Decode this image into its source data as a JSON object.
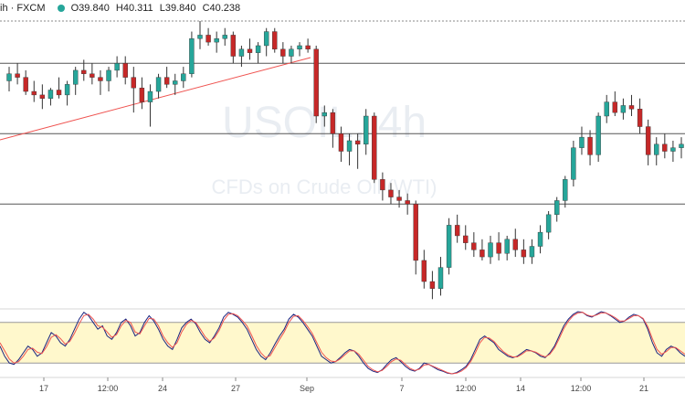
{
  "header": {
    "symbol_suffix": "ih · FXCM",
    "open": "O39.840",
    "high": "H40.311",
    "low": "L39.840",
    "close": "C40.238"
  },
  "watermark": {
    "symbol": "USOIL, 4h",
    "description": "CFDs on Crude Oil (WTI)"
  },
  "colors": {
    "up": "#26a69a",
    "down": "#c62828",
    "trendline": "#ef5350",
    "stoch_k": "#1a237e",
    "stoch_d": "#ef5350",
    "stoch_band": "#fff8cc"
  },
  "chart_data": [
    {
      "type": "candlestick",
      "x_tick_labels": [
        "17",
        "12:00",
        "24",
        "27",
        "Sep",
        "7",
        "12:00",
        "14",
        "12:00",
        "21"
      ],
      "horizontal_levels": [
        40.0,
        39.0,
        38.0
      ],
      "candles_approx": [
        [
          39.75,
          39.95,
          39.6,
          39.85
        ],
        [
          39.85,
          40.0,
          39.7,
          39.8
        ],
        [
          39.8,
          39.9,
          39.55,
          39.6
        ],
        [
          39.6,
          39.75,
          39.45,
          39.55
        ],
        [
          39.55,
          39.7,
          39.35,
          39.5
        ],
        [
          39.5,
          39.65,
          39.4,
          39.62
        ],
        [
          39.62,
          39.8,
          39.5,
          39.55
        ],
        [
          39.55,
          39.75,
          39.4,
          39.7
        ],
        [
          39.7,
          39.95,
          39.55,
          39.9
        ],
        [
          39.9,
          40.05,
          39.75,
          39.85
        ],
        [
          39.85,
          40.0,
          39.7,
          39.8
        ],
        [
          39.8,
          39.9,
          39.55,
          39.75
        ],
        [
          39.75,
          39.95,
          39.6,
          39.9
        ],
        [
          39.9,
          40.1,
          39.8,
          40.0
        ],
        [
          40.0,
          40.1,
          39.7,
          39.8
        ],
        [
          39.8,
          39.95,
          39.3,
          39.65
        ],
        [
          39.65,
          39.8,
          39.35,
          39.45
        ],
        [
          39.45,
          39.7,
          39.1,
          39.6
        ],
        [
          39.6,
          39.85,
          39.5,
          39.8
        ],
        [
          39.8,
          39.95,
          39.65,
          39.7
        ],
        [
          39.7,
          39.85,
          39.55,
          39.75
        ],
        [
          39.75,
          39.95,
          39.65,
          39.85
        ],
        [
          39.85,
          40.45,
          39.8,
          40.35
        ],
        [
          40.35,
          40.6,
          40.2,
          40.4
        ],
        [
          40.4,
          40.5,
          40.25,
          40.3
        ],
        [
          40.3,
          40.45,
          40.15,
          40.35
        ],
        [
          40.35,
          40.5,
          40.25,
          40.4
        ],
        [
          40.4,
          40.45,
          40.0,
          40.1
        ],
        [
          40.1,
          40.25,
          39.95,
          40.2
        ],
        [
          40.2,
          40.35,
          40.05,
          40.15
        ],
        [
          40.15,
          40.3,
          40.0,
          40.25
        ],
        [
          40.25,
          40.5,
          40.1,
          40.45
        ],
        [
          40.45,
          40.5,
          40.15,
          40.2
        ],
        [
          40.2,
          40.3,
          40.0,
          40.1
        ],
        [
          40.1,
          40.25,
          40.0,
          40.2
        ],
        [
          40.2,
          40.3,
          40.1,
          40.25
        ],
        [
          40.25,
          40.35,
          40.15,
          40.2
        ],
        [
          40.2,
          40.25,
          39.15,
          39.25
        ],
        [
          39.25,
          39.4,
          39.1,
          39.3
        ],
        [
          39.3,
          39.35,
          38.8,
          39.0
        ],
        [
          39.0,
          39.1,
          38.6,
          38.75
        ],
        [
          38.75,
          39.0,
          38.55,
          38.9
        ],
        [
          38.9,
          39.0,
          38.5,
          38.85
        ],
        [
          38.85,
          39.35,
          38.7,
          39.25
        ],
        [
          39.25,
          39.3,
          38.3,
          38.35
        ],
        [
          38.35,
          38.45,
          38.05,
          38.2
        ],
        [
          38.2,
          38.3,
          38.0,
          38.1
        ],
        [
          38.1,
          38.2,
          37.95,
          38.05
        ],
        [
          38.05,
          38.15,
          37.85,
          38.0
        ],
        [
          38.0,
          38.05,
          37.0,
          37.2
        ],
        [
          37.2,
          37.35,
          36.8,
          36.9
        ],
        [
          36.9,
          37.05,
          36.65,
          36.8
        ],
        [
          36.8,
          37.25,
          36.7,
          37.1
        ],
        [
          37.1,
          37.8,
          37.0,
          37.7
        ],
        [
          37.7,
          37.85,
          37.45,
          37.55
        ],
        [
          37.55,
          37.7,
          37.35,
          37.45
        ],
        [
          37.45,
          37.6,
          37.25,
          37.35
        ],
        [
          37.35,
          37.5,
          37.2,
          37.25
        ],
        [
          37.25,
          37.55,
          37.15,
          37.45
        ],
        [
          37.45,
          37.6,
          37.2,
          37.3
        ],
        [
          37.3,
          37.55,
          37.2,
          37.5
        ],
        [
          37.5,
          37.65,
          37.25,
          37.35
        ],
        [
          37.35,
          37.5,
          37.15,
          37.25
        ],
        [
          37.25,
          37.5,
          37.15,
          37.4
        ],
        [
          37.4,
          37.7,
          37.3,
          37.6
        ],
        [
          37.6,
          37.9,
          37.5,
          37.85
        ],
        [
          37.85,
          38.1,
          37.75,
          38.05
        ],
        [
          38.05,
          38.4,
          37.95,
          38.35
        ],
        [
          38.35,
          38.9,
          38.25,
          38.8
        ],
        [
          38.8,
          39.1,
          38.7,
          38.95
        ],
        [
          38.95,
          39.05,
          38.55,
          38.7
        ],
        [
          38.7,
          39.3,
          38.6,
          39.25
        ],
        [
          39.25,
          39.55,
          39.15,
          39.45
        ],
        [
          39.45,
          39.6,
          39.25,
          39.3
        ],
        [
          39.3,
          39.5,
          39.2,
          39.4
        ],
        [
          39.4,
          39.55,
          39.25,
          39.35
        ],
        [
          39.35,
          39.5,
          39.0,
          39.1
        ],
        [
          39.1,
          39.2,
          38.55,
          38.7
        ],
        [
          38.7,
          38.95,
          38.55,
          38.85
        ],
        [
          38.85,
          39.0,
          38.65,
          38.75
        ],
        [
          38.75,
          38.9,
          38.6,
          38.8
        ],
        [
          38.8,
          38.95,
          38.65,
          38.85
        ]
      ]
    },
    {
      "type": "line",
      "name": "Stochastic",
      "ylim": [
        0,
        100
      ],
      "band": [
        20,
        80
      ],
      "series": [
        {
          "values": [
            45,
            30,
            20,
            18,
            25,
            35,
            45,
            40,
            30,
            35,
            50,
            65,
            60,
            50,
            45,
            55,
            70,
            85,
            95,
            90,
            80,
            70,
            75,
            60,
            55,
            65,
            80,
            85,
            75,
            60,
            65,
            80,
            90,
            82,
            70,
            55,
            45,
            40,
            55,
            72,
            80,
            85,
            78,
            65,
            55,
            50,
            60,
            72,
            88,
            95,
            92,
            88,
            80,
            70,
            55,
            40,
            30,
            25,
            35,
            48,
            60,
            70,
            85,
            92,
            88,
            80,
            70,
            60,
            45,
            30,
            25,
            20,
            22,
            28,
            35,
            40,
            38,
            30,
            20,
            12,
            8,
            6,
            10,
            18,
            25,
            28,
            22,
            15,
            10,
            8,
            12,
            20,
            18,
            14,
            10,
            8,
            5,
            4,
            6,
            10,
            15,
            25,
            40,
            55,
            60,
            55,
            50,
            40,
            35,
            30,
            28,
            30,
            35,
            40,
            38,
            35,
            30,
            28,
            35,
            45,
            60,
            75,
            85,
            92,
            96,
            95,
            90,
            88,
            92,
            96,
            94,
            90,
            85,
            80,
            82,
            88,
            92,
            90,
            85,
            70,
            50,
            35,
            30,
            40,
            45,
            42,
            35,
            30
          ]
        },
        {
          "values": [
            50,
            38,
            26,
            20,
            22,
            30,
            40,
            42,
            36,
            34,
            44,
            58,
            62,
            56,
            48,
            52,
            64,
            78,
            90,
            92,
            85,
            75,
            73,
            66,
            58,
            62,
            75,
            83,
            80,
            66,
            63,
            75,
            86,
            85,
            75,
            60,
            50,
            43,
            50,
            66,
            77,
            83,
            80,
            70,
            59,
            52,
            57,
            68,
            83,
            92,
            93,
            90,
            83,
            75,
            61,
            46,
            35,
            28,
            31,
            43,
            55,
            66,
            80,
            89,
            90,
            83,
            74,
            64,
            50,
            36,
            28,
            23,
            22,
            26,
            32,
            38,
            38,
            33,
            24,
            15,
            10,
            7,
            9,
            15,
            22,
            26,
            24,
            18,
            12,
            9,
            11,
            17,
            18,
            15,
            12,
            9,
            6,
            4,
            5,
            8,
            13,
            22,
            35,
            50,
            58,
            57,
            52,
            44,
            37,
            32,
            29,
            29,
            33,
            38,
            38,
            36,
            32,
            29,
            33,
            42,
            56,
            71,
            82,
            90,
            94,
            95,
            91,
            89,
            91,
            94,
            94,
            91,
            87,
            82,
            82,
            86,
            90,
            90,
            86,
            74,
            56,
            40,
            33,
            37,
            43,
            43,
            38,
            33
          ]
        }
      ]
    }
  ]
}
